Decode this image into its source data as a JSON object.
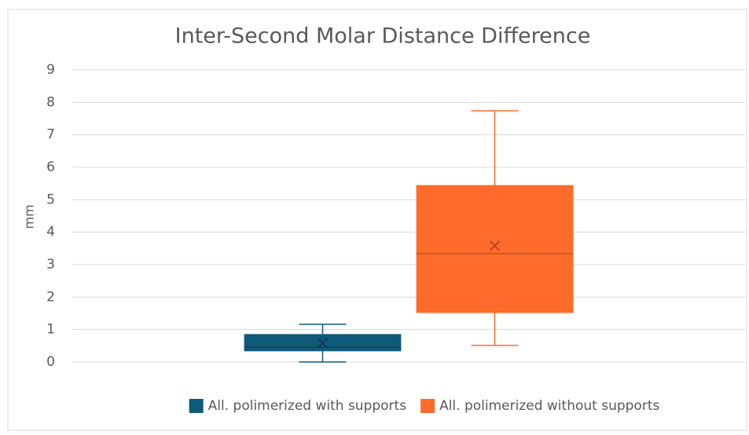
{
  "chart_data": {
    "type": "box",
    "title": "Inter-Second Molar Distance Difference",
    "y_label": "mm",
    "ylim": [
      0,
      9
    ],
    "yticks": [
      0,
      1,
      2,
      3,
      4,
      5,
      6,
      7,
      8,
      9
    ],
    "grid": true,
    "legend": "bottom",
    "series": [
      {
        "name": "All. polimerized with supports",
        "color": "#0f5a7a",
        "min": 0,
        "q1": 0.34,
        "median": 0.46,
        "q3": 0.85,
        "max": 1.16,
        "mean": 0.58
      },
      {
        "name": "All. polimerized without supports",
        "color": "#ff6b2a",
        "min": 0.51,
        "q1": 1.52,
        "median": 3.34,
        "q3": 5.44,
        "max": 7.74,
        "mean": 3.58
      }
    ]
  }
}
